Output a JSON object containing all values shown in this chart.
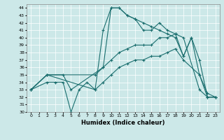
{
  "xlabel": "Humidex (Indice chaleur)",
  "background_color": "#cce8e8",
  "grid_color": "#ffffff",
  "line_color": "#1a6e6e",
  "xlim": [
    -0.5,
    23.5
  ],
  "ylim": [
    30,
    44.5
  ],
  "xticks": [
    0,
    1,
    2,
    3,
    4,
    5,
    6,
    7,
    8,
    9,
    10,
    11,
    12,
    13,
    14,
    15,
    16,
    17,
    18,
    19,
    20,
    21,
    22,
    23
  ],
  "yticks": [
    30,
    31,
    32,
    33,
    34,
    35,
    36,
    37,
    38,
    39,
    40,
    41,
    42,
    43,
    44
  ],
  "series": [
    {
      "x": [
        0,
        2,
        3,
        4,
        5,
        6,
        7,
        8,
        9,
        10,
        11,
        12,
        13,
        14,
        15,
        16,
        17,
        18,
        19,
        21,
        22,
        23
      ],
      "y": [
        33,
        34,
        34,
        34,
        30,
        33,
        34,
        33,
        41,
        44,
        44,
        43,
        42.5,
        41,
        41,
        42,
        41,
        40.5,
        40,
        33,
        32,
        32
      ]
    },
    {
      "x": [
        0,
        2,
        4,
        5,
        9,
        10,
        11,
        12,
        13,
        14,
        15,
        16,
        17,
        18,
        19,
        20,
        21,
        22,
        23
      ],
      "y": [
        33,
        35,
        35,
        33,
        36,
        44,
        44,
        43,
        42.5,
        42,
        41.5,
        41,
        40.5,
        40,
        37.5,
        40,
        35,
        32,
        32
      ]
    },
    {
      "x": [
        0,
        2,
        8,
        9,
        10,
        11,
        12,
        13,
        14,
        15,
        16,
        17,
        18,
        19,
        20,
        21,
        22,
        23
      ],
      "y": [
        33,
        35,
        35,
        36,
        37,
        38,
        38.5,
        39,
        39,
        39,
        40,
        40,
        40.5,
        37.5,
        40,
        37,
        32,
        32
      ]
    },
    {
      "x": [
        0,
        2,
        8,
        9,
        10,
        11,
        12,
        13,
        14,
        15,
        16,
        17,
        18,
        19,
        21,
        22,
        23
      ],
      "y": [
        33,
        35,
        33,
        34,
        35,
        36,
        36.5,
        37,
        37,
        37.5,
        37.5,
        38,
        38.5,
        37,
        35,
        32.5,
        32
      ]
    }
  ]
}
